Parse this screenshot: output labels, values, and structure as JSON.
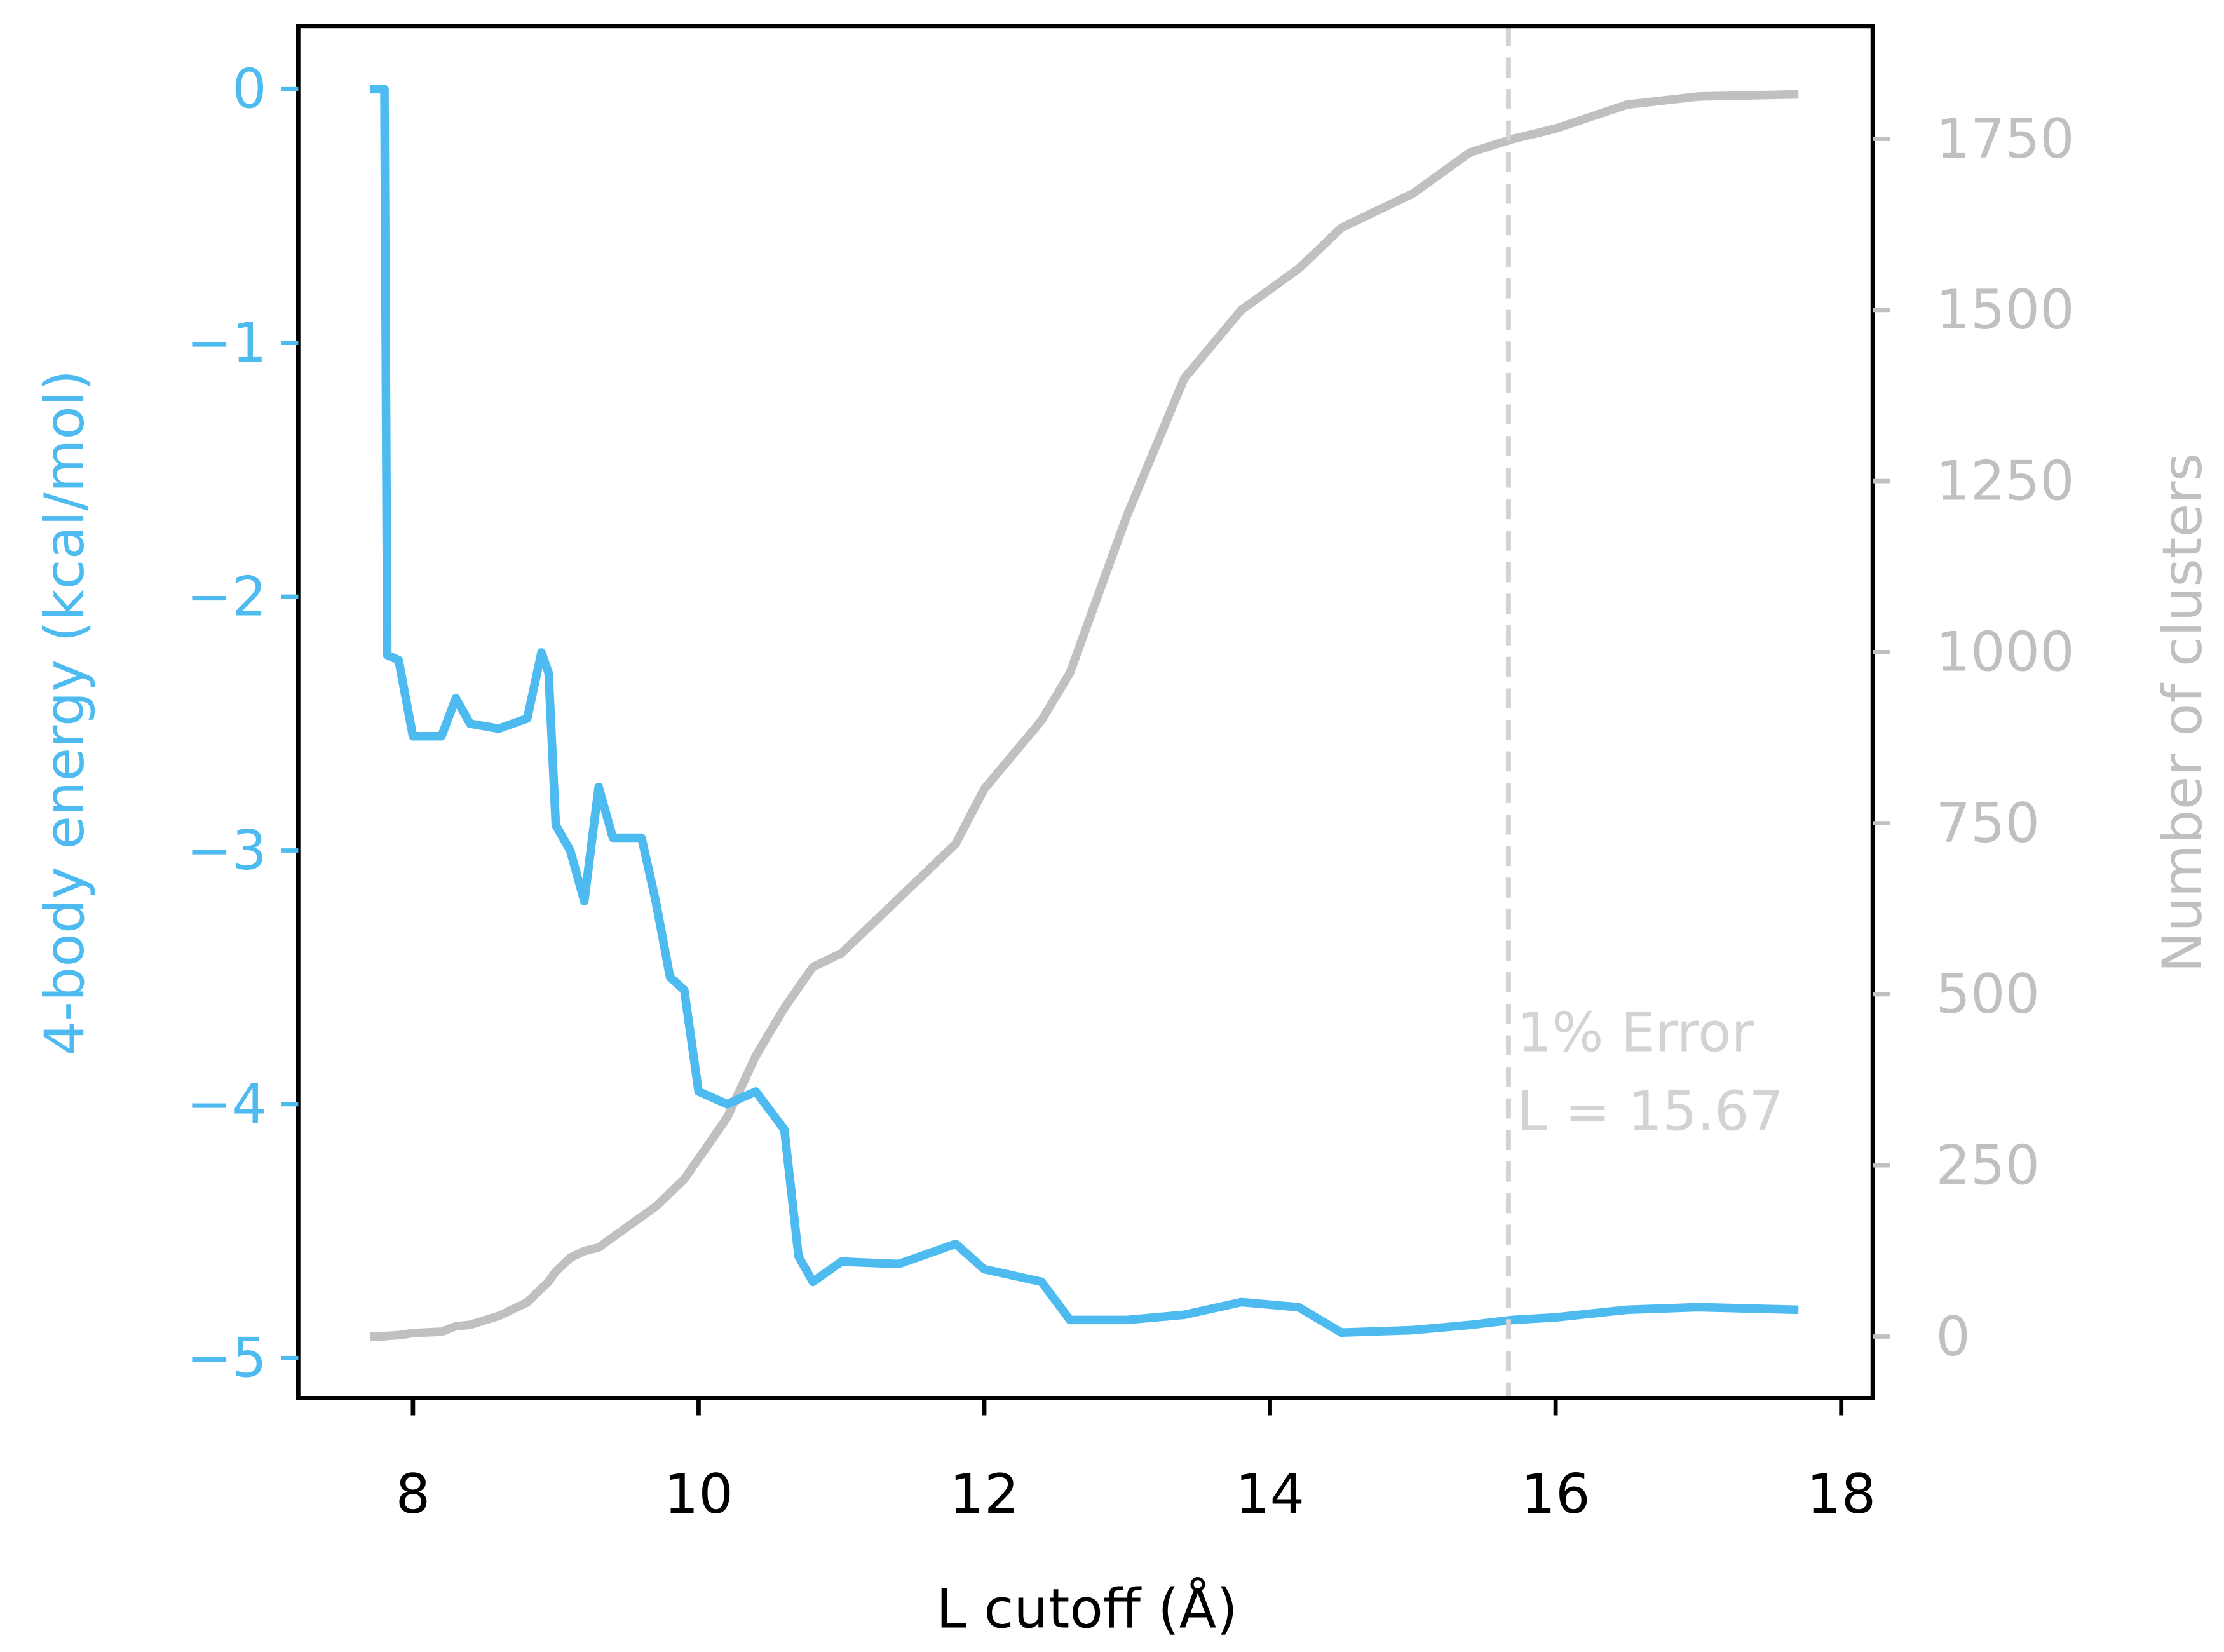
{
  "chart_data": {
    "type": "line",
    "xlabel": "L cutoff (Å)",
    "ylabel": "4-body energy (kcal/mol)",
    "y2label": "Number of clusters",
    "annotations": [
      "1% Error",
      "L = 15.67"
    ],
    "vline": 15.67,
    "vline_color": "#d3d3d3",
    "xlim": [
      7.197,
      18.22
    ],
    "xticks": [
      8,
      10,
      12,
      14,
      16,
      18
    ],
    "ylim": [
      -5.158,
      0.249
    ],
    "yticks": [
      {
        "value": -5,
        "label": "−5"
      },
      {
        "value": -4,
        "label": "−4"
      },
      {
        "value": -3,
        "label": "−3"
      },
      {
        "value": -2,
        "label": "−2"
      },
      {
        "value": -1,
        "label": "−1"
      },
      0
    ],
    "y2lim": [
      -90,
      1915
    ],
    "y2ticks": [
      0,
      250,
      500,
      750,
      1000,
      1250,
      1500,
      1750
    ],
    "x": [
      7.7,
      7.8,
      7.82,
      7.9,
      8.0,
      8.1,
      8.2,
      8.3,
      8.4,
      8.6,
      8.8,
      8.9,
      8.95,
      9.0,
      9.1,
      9.2,
      9.3,
      9.4,
      9.6,
      9.7,
      9.8,
      9.9,
      10.0,
      10.2,
      10.4,
      10.6,
      10.7,
      10.8,
      11.0,
      11.4,
      11.8,
      12.0,
      12.4,
      12.6,
      13.0,
      13.4,
      13.8,
      14.2,
      14.5,
      15.0,
      15.4,
      15.7,
      16.0,
      16.5,
      17.0,
      17.7
    ],
    "series": [
      {
        "color": "#4dbbf0",
        "axis": "y",
        "values": [
          0,
          0,
          -2.23,
          -2.25,
          -2.55,
          -2.55,
          -2.55,
          -2.4,
          -2.5,
          -2.52,
          -2.48,
          -2.22,
          -2.3,
          -2.9,
          -3.0,
          -3.2,
          -2.75,
          -2.95,
          -2.95,
          -3.2,
          -3.5,
          -3.55,
          -3.95,
          -4.0,
          -3.95,
          -4.1,
          -4.6,
          -4.7,
          -4.62,
          -4.63,
          -4.55,
          -4.65,
          -4.7,
          -4.85,
          -4.85,
          -4.83,
          -4.78,
          -4.8,
          -4.9,
          -4.89,
          -4.87,
          -4.85,
          -4.84,
          -4.81,
          -4.8,
          -4.81
        ]
      },
      {
        "color": "#c0c0c0",
        "axis": "y2",
        "values": [
          0,
          0,
          1,
          2,
          5,
          6,
          7,
          15,
          17,
          30,
          50,
          70,
          80,
          95,
          115,
          125,
          130,
          145,
          175,
          190,
          210,
          230,
          260,
          320,
          410,
          480,
          510,
          540,
          560,
          640,
          720,
          800,
          900,
          970,
          1200,
          1400,
          1500,
          1560,
          1620,
          1670,
          1730,
          1750,
          1765,
          1800,
          1812,
          1815
        ]
      }
    ]
  }
}
